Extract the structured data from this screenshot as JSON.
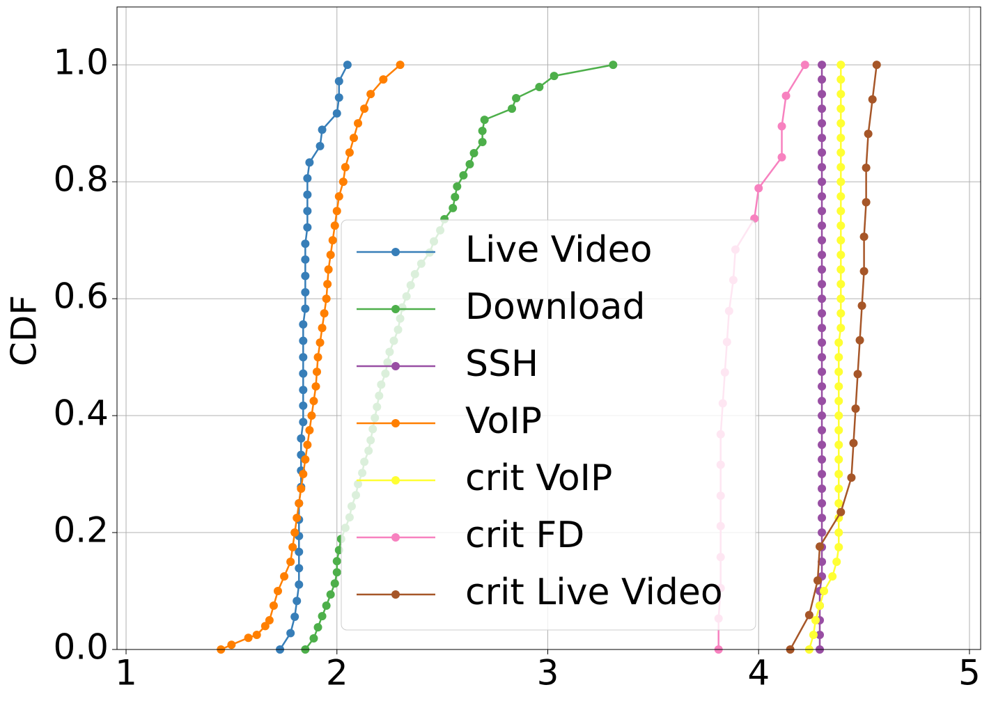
{
  "chart_data": {
    "type": "line",
    "ylabel": "CDF",
    "xlim": [
      0.957,
      5.053
    ],
    "ylim": [
      0,
      1.099
    ],
    "xticks": [
      1,
      2,
      3,
      4,
      5
    ],
    "yticks": [
      {
        "value": 0,
        "label": "0.0"
      },
      {
        "value": 0.2,
        "label": "0.2"
      },
      {
        "value": 0.4,
        "label": "0.4"
      },
      {
        "value": 0.6,
        "label": "0.6"
      },
      {
        "value": 0.8,
        "label": "0.8"
      },
      {
        "value": 1,
        "label": "1.0"
      }
    ],
    "grid": true,
    "legend": "lower center",
    "series": [
      {
        "name": "Live Video",
        "color": "#377eb8",
        "x": [
          1.73,
          1.78,
          1.8,
          1.81,
          1.82,
          1.82,
          1.82,
          1.82,
          1.82,
          1.82,
          1.83,
          1.83,
          1.83,
          1.83,
          1.84,
          1.84,
          1.84,
          1.84,
          1.84,
          1.84,
          1.84,
          1.85,
          1.85,
          1.85,
          1.85,
          1.85,
          1.86,
          1.86,
          1.86,
          1.86,
          1.87,
          1.92,
          1.93,
          2.0,
          2.01,
          2.01,
          2.05
        ],
        "values": [
          0,
          0.028,
          0.056,
          0.083,
          0.111,
          0.139,
          0.167,
          0.194,
          0.222,
          0.25,
          0.278,
          0.306,
          0.333,
          0.361,
          0.389,
          0.417,
          0.444,
          0.472,
          0.5,
          0.528,
          0.556,
          0.583,
          0.611,
          0.639,
          0.667,
          0.694,
          0.722,
          0.75,
          0.778,
          0.806,
          0.833,
          0.861,
          0.889,
          0.917,
          0.944,
          0.972,
          1.0
        ]
      },
      {
        "name": "Download",
        "color": "#4daf4a",
        "x": [
          1.85,
          1.89,
          1.91,
          1.93,
          1.95,
          1.97,
          1.99,
          2.0,
          2.0,
          2.01,
          2.02,
          2.04,
          2.06,
          2.07,
          2.09,
          2.1,
          2.12,
          2.13,
          2.15,
          2.16,
          2.17,
          2.18,
          2.19,
          2.2,
          2.21,
          2.23,
          2.24,
          2.25,
          2.27,
          2.29,
          2.3,
          2.31,
          2.33,
          2.35,
          2.37,
          2.4,
          2.44,
          2.46,
          2.49,
          2.51,
          2.55,
          2.56,
          2.57,
          2.6,
          2.63,
          2.65,
          2.69,
          2.69,
          2.7,
          2.83,
          2.85,
          2.96,
          3.03,
          3.31
        ],
        "values": [
          0,
          0.019,
          0.038,
          0.057,
          0.075,
          0.094,
          0.113,
          0.132,
          0.151,
          0.17,
          0.189,
          0.208,
          0.226,
          0.245,
          0.264,
          0.283,
          0.302,
          0.321,
          0.34,
          0.358,
          0.377,
          0.396,
          0.415,
          0.434,
          0.453,
          0.472,
          0.491,
          0.509,
          0.528,
          0.547,
          0.566,
          0.585,
          0.604,
          0.623,
          0.642,
          0.66,
          0.679,
          0.698,
          0.717,
          0.736,
          0.755,
          0.774,
          0.792,
          0.811,
          0.83,
          0.849,
          0.868,
          0.887,
          0.906,
          0.925,
          0.943,
          0.962,
          0.981,
          1.0
        ]
      },
      {
        "name": "SSH",
        "color": "#984ea3",
        "x": [
          4.29,
          4.29,
          4.29,
          4.29,
          4.29,
          4.3,
          4.3,
          4.3,
          4.3,
          4.3,
          4.3,
          4.3,
          4.3,
          4.3,
          4.3,
          4.3,
          4.3,
          4.3,
          4.3,
          4.3,
          4.3,
          4.3,
          4.3,
          4.3,
          4.3,
          4.3,
          4.3,
          4.3,
          4.3,
          4.3,
          4.3,
          4.3,
          4.3,
          4.3,
          4.3,
          4.3,
          4.3,
          4.3,
          4.3,
          4.3,
          4.3
        ],
        "values": [
          0,
          0.025,
          0.05,
          0.075,
          0.1,
          0.125,
          0.15,
          0.175,
          0.2,
          0.225,
          0.25,
          0.275,
          0.3,
          0.325,
          0.35,
          0.375,
          0.4,
          0.425,
          0.45,
          0.475,
          0.5,
          0.525,
          0.55,
          0.575,
          0.6,
          0.625,
          0.65,
          0.675,
          0.7,
          0.725,
          0.75,
          0.775,
          0.8,
          0.825,
          0.85,
          0.875,
          0.9,
          0.925,
          0.95,
          0.975,
          1.0
        ]
      },
      {
        "name": "VoIP",
        "color": "#ff7f00",
        "x": [
          1.45,
          1.5,
          1.58,
          1.62,
          1.66,
          1.68,
          1.7,
          1.72,
          1.75,
          1.78,
          1.79,
          1.8,
          1.81,
          1.82,
          1.83,
          1.84,
          1.85,
          1.86,
          1.87,
          1.88,
          1.89,
          1.9,
          1.905,
          1.91,
          1.92,
          1.93,
          1.94,
          1.95,
          1.955,
          1.96,
          1.97,
          1.98,
          1.99,
          2.0,
          2.01,
          2.03,
          2.04,
          2.06,
          2.08,
          2.1,
          2.13,
          2.16,
          2.22,
          2.3
        ],
        "values": [
          0,
          0.008,
          0.02,
          0.025,
          0.04,
          0.05,
          0.075,
          0.1,
          0.125,
          0.15,
          0.175,
          0.2,
          0.225,
          0.25,
          0.275,
          0.3,
          0.325,
          0.35,
          0.375,
          0.4,
          0.425,
          0.45,
          0.475,
          0.5,
          0.525,
          0.55,
          0.575,
          0.6,
          0.625,
          0.65,
          0.675,
          0.7,
          0.725,
          0.75,
          0.775,
          0.8,
          0.825,
          0.85,
          0.875,
          0.9,
          0.925,
          0.95,
          0.975,
          1.0
        ]
      },
      {
        "name": "crit VoIP",
        "color": "#ffff33",
        "x": [
          4.24,
          4.26,
          4.27,
          4.29,
          4.31,
          4.35,
          4.37,
          4.38,
          4.38,
          4.38,
          4.38,
          4.38,
          4.38,
          4.38,
          4.38,
          4.38,
          4.38,
          4.38,
          4.38,
          4.38,
          4.38,
          4.38,
          4.39,
          4.39,
          4.39,
          4.39,
          4.39,
          4.39,
          4.39,
          4.39,
          4.39,
          4.39,
          4.39,
          4.39,
          4.39,
          4.39,
          4.39,
          4.39,
          4.39,
          4.39,
          4.39
        ],
        "values": [
          0,
          0.025,
          0.05,
          0.075,
          0.1,
          0.125,
          0.15,
          0.175,
          0.2,
          0.225,
          0.25,
          0.275,
          0.3,
          0.325,
          0.35,
          0.375,
          0.4,
          0.425,
          0.45,
          0.475,
          0.5,
          0.525,
          0.55,
          0.575,
          0.6,
          0.625,
          0.65,
          0.675,
          0.7,
          0.725,
          0.75,
          0.775,
          0.8,
          0.825,
          0.85,
          0.875,
          0.9,
          0.925,
          0.95,
          0.975,
          1.0
        ]
      },
      {
        "name": "crit FD",
        "color": "#f781bf",
        "x": [
          3.81,
          3.81,
          3.82,
          3.82,
          3.82,
          3.82,
          3.82,
          3.82,
          3.83,
          3.84,
          3.85,
          3.86,
          3.88,
          3.89,
          3.98,
          4.0,
          4.11,
          4.11,
          4.13,
          4.22
        ],
        "values": [
          0,
          0.053,
          0.105,
          0.158,
          0.211,
          0.263,
          0.316,
          0.368,
          0.421,
          0.474,
          0.526,
          0.579,
          0.632,
          0.684,
          0.737,
          0.789,
          0.842,
          0.895,
          0.947,
          1.0
        ]
      },
      {
        "name": "crit Live Video",
        "color": "#a65628",
        "x": [
          4.15,
          4.24,
          4.28,
          4.29,
          4.39,
          4.44,
          4.45,
          4.46,
          4.47,
          4.48,
          4.49,
          4.5,
          4.5,
          4.51,
          4.51,
          4.52,
          4.54,
          4.56
        ],
        "values": [
          0,
          0.059,
          0.118,
          0.176,
          0.235,
          0.294,
          0.353,
          0.412,
          0.471,
          0.529,
          0.588,
          0.647,
          0.706,
          0.765,
          0.824,
          0.882,
          0.941,
          1.0
        ]
      }
    ]
  }
}
